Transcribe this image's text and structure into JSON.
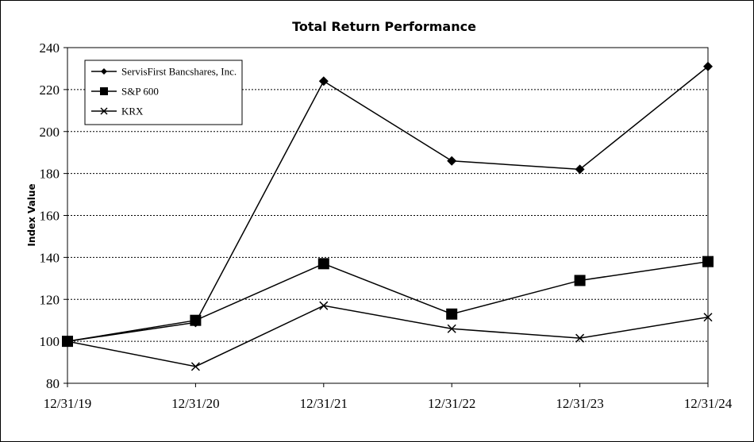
{
  "chart_data": {
    "type": "line",
    "title": "Total Return Performance",
    "xlabel": "",
    "ylabel": "Index Value",
    "categories": [
      "12/31/19",
      "12/31/20",
      "12/31/21",
      "12/31/22",
      "12/31/23",
      "12/31/24"
    ],
    "yticks": [
      80,
      100,
      120,
      140,
      160,
      180,
      200,
      220,
      240
    ],
    "ylim": [
      80,
      240
    ],
    "grid": true,
    "legend_position": "top-left",
    "series": [
      {
        "name": "ServisFirst Bancshares, Inc.",
        "marker": "diamond",
        "values": [
          100,
          109,
          224,
          186,
          182,
          231
        ]
      },
      {
        "name": "S&P 600",
        "marker": "square",
        "values": [
          100,
          110,
          137,
          113,
          129,
          138
        ]
      },
      {
        "name": "KRX",
        "marker": "x",
        "values": [
          100,
          88,
          117,
          106,
          101.5,
          111.5
        ]
      }
    ]
  }
}
